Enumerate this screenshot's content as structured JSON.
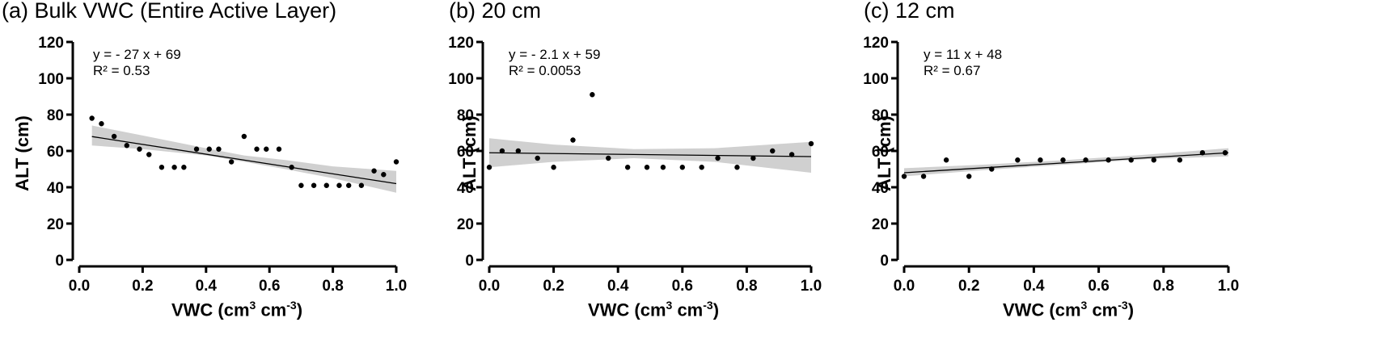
{
  "panels": [
    {
      "title": "(a) Bulk VWC (Entire Active Layer)",
      "equation": "y = - 27 x + 69",
      "r2": "R² = 0.53"
    },
    {
      "title": "(b) 20 cm",
      "equation": "y = - 2.1 x + 59",
      "r2": "R² = 0.0053"
    },
    {
      "title": "(c) 12 cm",
      "equation": "y = 11 x + 48",
      "r2": "R² = 0.67"
    }
  ],
  "chart_data": [
    {
      "type": "scatter",
      "title": "(a) Bulk VWC (Entire Active Layer)",
      "xlabel": "VWC (cm³ cm⁻³)",
      "ylabel": "ALT (cm)",
      "xlim": [
        0.0,
        1.0
      ],
      "ylim": [
        0,
        120
      ],
      "xticks": [
        "0.0",
        "0.2",
        "0.4",
        "0.6",
        "0.8",
        "1.0"
      ],
      "yticks": [
        "0",
        "20",
        "40",
        "60",
        "80",
        "100",
        "120"
      ],
      "points": [
        [
          0.04,
          78
        ],
        [
          0.07,
          75
        ],
        [
          0.11,
          68
        ],
        [
          0.15,
          63
        ],
        [
          0.19,
          61
        ],
        [
          0.22,
          58
        ],
        [
          0.26,
          51
        ],
        [
          0.3,
          51
        ],
        [
          0.33,
          51
        ],
        [
          0.37,
          61
        ],
        [
          0.41,
          61
        ],
        [
          0.44,
          61
        ],
        [
          0.48,
          54
        ],
        [
          0.52,
          68
        ],
        [
          0.56,
          61
        ],
        [
          0.59,
          61
        ],
        [
          0.63,
          61
        ],
        [
          0.67,
          51
        ],
        [
          0.7,
          41
        ],
        [
          0.74,
          41
        ],
        [
          0.78,
          41
        ],
        [
          0.82,
          41
        ],
        [
          0.85,
          41
        ],
        [
          0.89,
          41
        ],
        [
          0.93,
          49
        ],
        [
          0.96,
          47
        ],
        [
          1.0,
          54
        ]
      ],
      "fit": {
        "slope": -27,
        "intercept": 69,
        "x_range": [
          0.04,
          1.0
        ]
      },
      "ci_band": [
        [
          0.04,
          63,
          74
        ],
        [
          0.2,
          61,
          68.5
        ],
        [
          0.4,
          57.5,
          61.5
        ],
        [
          0.52,
          54,
          57.5
        ],
        [
          0.65,
          50,
          55
        ],
        [
          0.8,
          45,
          51.5
        ],
        [
          1.0,
          37,
          49
        ]
      ],
      "grid": false
    },
    {
      "type": "scatter",
      "title": "(b) 20 cm",
      "xlabel": "VWC (cm³ cm⁻³)",
      "ylabel": "ALT (cm)",
      "xlim": [
        0.0,
        1.0
      ],
      "ylim": [
        0,
        120
      ],
      "xticks": [
        "0.0",
        "0.2",
        "0.4",
        "0.6",
        "0.8",
        "1.0"
      ],
      "yticks": [
        "0",
        "20",
        "40",
        "60",
        "80",
        "100",
        "120"
      ],
      "points": [
        [
          0.0,
          51
        ],
        [
          0.04,
          60
        ],
        [
          0.09,
          60
        ],
        [
          0.15,
          56
        ],
        [
          0.2,
          51
        ],
        [
          0.26,
          66
        ],
        [
          0.32,
          91
        ],
        [
          0.37,
          56
        ],
        [
          0.43,
          51
        ],
        [
          0.49,
          51
        ],
        [
          0.54,
          51
        ],
        [
          0.6,
          51
        ],
        [
          0.66,
          51
        ],
        [
          0.71,
          56
        ],
        [
          0.77,
          51
        ],
        [
          0.82,
          56
        ],
        [
          0.88,
          60
        ],
        [
          0.94,
          58
        ],
        [
          1.0,
          64
        ]
      ],
      "fit": {
        "slope": -2.1,
        "intercept": 59,
        "x_range": [
          0.0,
          1.0
        ]
      },
      "ci_band": [
        [
          0.0,
          51,
          67
        ],
        [
          0.2,
          54,
          63.5
        ],
        [
          0.45,
          56,
          61
        ],
        [
          0.7,
          54,
          61.5
        ],
        [
          1.0,
          48,
          65
        ]
      ],
      "grid": false
    },
    {
      "type": "scatter",
      "title": "(c) 12 cm",
      "xlabel": "VWC (cm³ cm⁻³)",
      "ylabel": "ALT (cm)",
      "xlim": [
        0.0,
        1.0
      ],
      "ylim": [
        0,
        120
      ],
      "xticks": [
        "0.0",
        "0.2",
        "0.4",
        "0.6",
        "0.8",
        "1.0"
      ],
      "yticks": [
        "0",
        "20",
        "40",
        "60",
        "80",
        "100",
        "120"
      ],
      "points": [
        [
          0.0,
          46
        ],
        [
          0.06,
          46
        ],
        [
          0.13,
          55
        ],
        [
          0.2,
          46
        ],
        [
          0.27,
          50
        ],
        [
          0.35,
          55
        ],
        [
          0.42,
          55
        ],
        [
          0.49,
          55
        ],
        [
          0.56,
          55
        ],
        [
          0.63,
          55
        ],
        [
          0.7,
          55
        ],
        [
          0.77,
          55
        ],
        [
          0.85,
          55
        ],
        [
          0.92,
          59
        ],
        [
          0.99,
          59
        ]
      ],
      "fit": {
        "slope": 11,
        "intercept": 48,
        "x_range": [
          0.0,
          1.0
        ]
      },
      "ci_band": [
        [
          0.0,
          46,
          50.5
        ],
        [
          0.25,
          49.5,
          52.5
        ],
        [
          0.5,
          52.5,
          55
        ],
        [
          0.75,
          55.5,
          58
        ],
        [
          1.0,
          57,
          61.5
        ]
      ],
      "grid": false
    }
  ]
}
